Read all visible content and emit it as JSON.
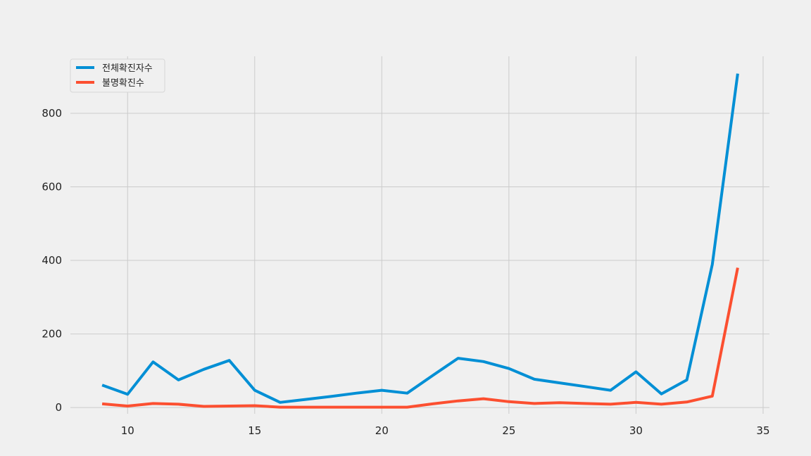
{
  "chart_data": {
    "type": "line",
    "title": "",
    "xlabel": "",
    "ylabel": "",
    "xlim": [
      7.75,
      35.25
    ],
    "ylim": [
      -17,
      955
    ],
    "xticks": [
      10,
      15,
      20,
      25,
      30,
      35
    ],
    "yticks": [
      0,
      200,
      400,
      600,
      800
    ],
    "grid": true,
    "legend": "top-left",
    "x": [
      9,
      10,
      11,
      12,
      13,
      14,
      15,
      16,
      17,
      18,
      19,
      20,
      21,
      22,
      23,
      24,
      25,
      26,
      27,
      28,
      29,
      30,
      31,
      32,
      33,
      34
    ],
    "series": [
      {
        "name": "전체확진자수",
        "color": "#008fd5",
        "values": [
          61,
          36,
          124,
          75,
          104,
          128,
          47,
          14,
          22,
          30,
          39,
          47,
          39,
          87,
          134,
          125,
          106,
          77,
          67,
          57,
          47,
          97,
          37,
          75,
          389,
          908
        ]
      },
      {
        "name": "불명확진수",
        "color": "#fc4f30",
        "values": [
          10,
          4,
          11,
          9,
          3,
          4,
          5,
          1,
          1,
          1,
          1,
          1,
          1,
          10,
          18,
          24,
          16,
          11,
          13,
          11,
          9,
          14,
          9,
          15,
          31,
          380
        ]
      }
    ]
  }
}
